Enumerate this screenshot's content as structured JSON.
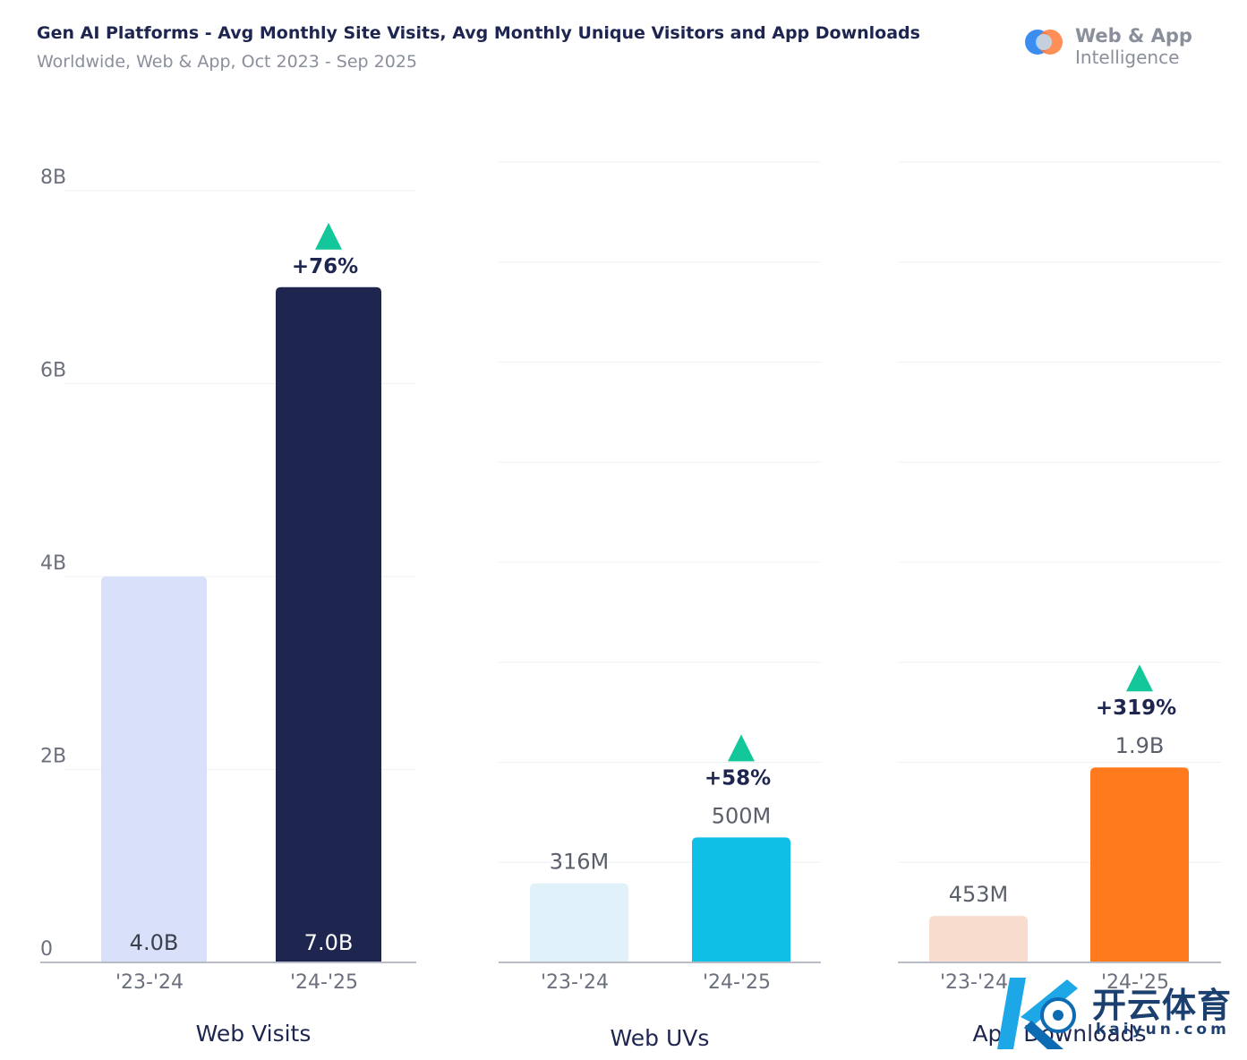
{
  "header": {
    "title": "Gen AI Platforms - Avg Monthly Site Visits, Avg Monthly Unique Visitors and App Downloads",
    "subtitle": "Worldwide, Web & App, Oct 2023 - Sep 2025"
  },
  "logo": {
    "line1": "Web & App",
    "line2": "Intelligence"
  },
  "watermark": {
    "name": "开云体育",
    "url": "kaiyun.com"
  },
  "colors": {
    "title": "#1e2650",
    "muted": "#8a8f9c",
    "up_arrow": "#14c79a",
    "grid": "#eef0f4",
    "axis": "#b8bcc6"
  },
  "chart_data": [
    {
      "type": "bar",
      "name": "Web Visits",
      "categories": [
        "'23-'24",
        "'24-'25"
      ],
      "values": [
        4.0,
        7.0
      ],
      "value_labels": [
        "4.0B",
        "7.0B"
      ],
      "value_labels_inside": true,
      "colors": [
        "#d9e1fa",
        "#1e2650"
      ],
      "label_colors": [
        "#3a3f4a",
        "#ffffff"
      ],
      "change_label": "+76%",
      "unit": "B",
      "ylim": [
        0,
        8
      ],
      "yticks": [
        0,
        2,
        4,
        6,
        8
      ],
      "ytick_labels": [
        "0",
        "2B",
        "4B",
        "6B",
        "8B"
      ],
      "xlabel": "Web Visits",
      "grid": true
    },
    {
      "type": "bar",
      "name": "Web UVs",
      "categories": [
        "'23-'24",
        "'24-'25"
      ],
      "values": [
        316,
        500
      ],
      "value_labels": [
        "316M",
        "500M"
      ],
      "value_labels_inside": false,
      "colors": [
        "#e1f1fa",
        "#10bfe6"
      ],
      "label_colors": [
        "#5a5f6a",
        "#5a5f6a"
      ],
      "change_label": "+58%",
      "unit": "M",
      "ylim": [
        0,
        3200
      ],
      "yticks": [
        0,
        400,
        800,
        1200,
        1600,
        2000,
        2400,
        2800,
        3200
      ],
      "ytick_labels": [],
      "xlabel": "Web UVs",
      "grid": true
    },
    {
      "type": "bar",
      "name": "App Downloads",
      "categories": [
        "'23-'24",
        "'24-'25"
      ],
      "values": [
        453,
        1900
      ],
      "value_labels": [
        "453M",
        "1.9B"
      ],
      "value_labels_inside": false,
      "colors": [
        "#f8ddcf",
        "#ff7a1c"
      ],
      "label_colors": [
        "#5a5f6a",
        "#5a5f6a"
      ],
      "change_label": "+319%",
      "unit": "M",
      "ylim": [
        0,
        7800
      ],
      "yticks": [
        0,
        975,
        1950,
        2925,
        3900,
        4875,
        5850,
        6825,
        7800
      ],
      "ytick_labels": [],
      "xlabel": "App Downloads",
      "grid": true
    }
  ]
}
